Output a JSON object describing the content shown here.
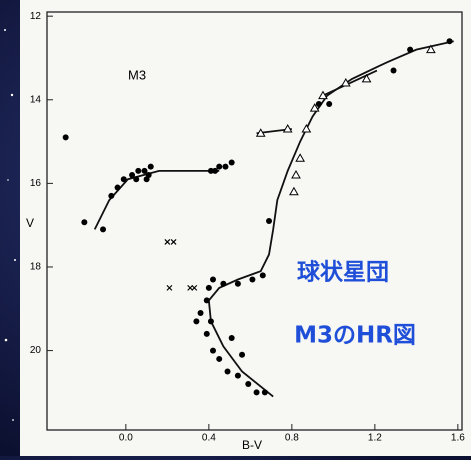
{
  "chart_data": {
    "type": "scatter",
    "title": "M3",
    "xlabel": "B-V",
    "ylabel": "V",
    "annotations": [
      "球状星団",
      "M3のHR図"
    ],
    "xlim": [
      -0.38,
      1.62
    ],
    "ylim": [
      21.9,
      11.9
    ],
    "xticks": [
      {
        "value": 0,
        "label": "0.0"
      },
      0.4,
      0.8,
      1.2,
      1.6
    ],
    "yticks": [
      12,
      14,
      16,
      18,
      20
    ],
    "series": [
      {
        "marker": "circle",
        "color": "#000000",
        "x": [
          -0.29,
          -0.2,
          -0.11,
          -0.07,
          -0.04,
          -0.01,
          0.03,
          0.06,
          0.09,
          0.11,
          0.12,
          0.1,
          0.05,
          0.41,
          0.45,
          0.48,
          0.51,
          0.43,
          0.69,
          0.93,
          0.98,
          1.29,
          1.37,
          1.56,
          0.42,
          0.39,
          0.36,
          0.41,
          0.39,
          0.42,
          0.45,
          0.49,
          0.54,
          0.59,
          0.63,
          0.67,
          0.4,
          0.47,
          0.54,
          0.61,
          0.66,
          0.34,
          0.51,
          0.56
        ],
        "y": [
          14.9,
          16.93,
          17.1,
          16.3,
          16.1,
          15.9,
          15.8,
          15.7,
          15.7,
          15.8,
          15.6,
          15.9,
          15.9,
          15.7,
          15.6,
          15.6,
          15.5,
          15.7,
          16.9,
          14.1,
          14.1,
          13.3,
          12.8,
          12.6,
          18.3,
          18.8,
          19.1,
          19.3,
          19.6,
          20.0,
          20.2,
          20.5,
          20.6,
          20.8,
          21.0,
          21.0,
          18.5,
          18.4,
          18.4,
          18.3,
          18.2,
          19.3,
          19.7,
          20.1
        ]
      },
      {
        "marker": "triangle",
        "color": "#000000",
        "x": [
          0.65,
          0.78,
          0.84,
          0.82,
          0.81,
          0.87,
          0.91,
          0.95,
          1.06,
          1.16,
          1.47
        ],
        "y": [
          14.8,
          14.7,
          15.4,
          15.8,
          16.2,
          14.7,
          14.2,
          13.9,
          13.6,
          13.5,
          12.8
        ]
      },
      {
        "marker": "x",
        "color": "#000000",
        "x": [
          0.2,
          0.23,
          0.21,
          0.31,
          0.33
        ],
        "y": [
          17.4,
          17.4,
          18.5,
          18.5,
          18.5
        ]
      }
    ],
    "curves": [
      {
        "x": [
          0.71,
          0.56,
          0.47,
          0.41,
          0.4,
          0.45,
          0.54,
          0.65,
          0.69,
          0.71,
          0.73,
          0.78,
          0.84,
          0.9,
          0.97,
          1.09,
          1.26,
          1.4,
          1.58
        ],
        "y": [
          21.1,
          20.5,
          19.9,
          19.3,
          18.8,
          18.5,
          18.3,
          18.1,
          17.7,
          17.1,
          16.4,
          15.7,
          15.0,
          14.4,
          13.9,
          13.5,
          13.1,
          12.8,
          12.6
        ]
      },
      {
        "x": [
          -0.15,
          -0.08,
          0.01,
          0.16,
          0.45
        ],
        "y": [
          17.1,
          16.4,
          15.9,
          15.7,
          15.7
        ]
      },
      {
        "x": [
          0.63,
          0.8
        ],
        "y": [
          14.8,
          14.7
        ]
      },
      {
        "x": [
          0.95,
          1.21
        ],
        "y": [
          13.9,
          13.3
        ]
      }
    ]
  }
}
